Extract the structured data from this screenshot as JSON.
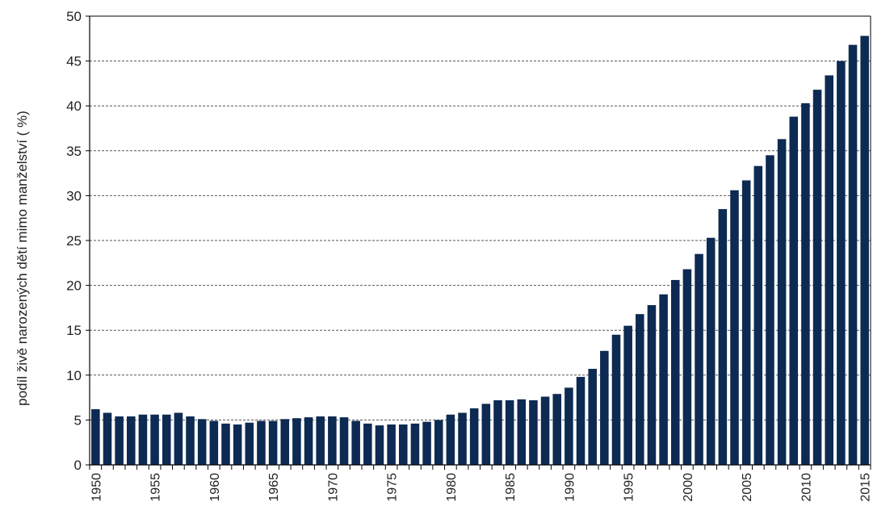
{
  "chart_data": {
    "type": "bar",
    "ylabel": "podíl živě narozených dětí mimo manželství ( %)",
    "xlabel": "",
    "title": "",
    "ylim": [
      0,
      50
    ],
    "yticks": [
      "0",
      "5",
      "10",
      "15",
      "20",
      "25",
      "30",
      "35",
      "40",
      "45",
      "50"
    ],
    "xtick_labels": [
      "1950",
      "1955",
      "1960",
      "1965",
      "1970",
      "1975",
      "1980",
      "1985",
      "1990",
      "1995",
      "2000",
      "2005",
      "2010",
      "2015"
    ],
    "grid": true,
    "bar_color": "#0d2a52",
    "categories": [
      1950,
      1951,
      1952,
      1953,
      1954,
      1955,
      1956,
      1957,
      1958,
      1959,
      1960,
      1961,
      1962,
      1963,
      1964,
      1965,
      1966,
      1967,
      1968,
      1969,
      1970,
      1971,
      1972,
      1973,
      1974,
      1975,
      1976,
      1977,
      1978,
      1979,
      1980,
      1981,
      1982,
      1983,
      1984,
      1985,
      1986,
      1987,
      1988,
      1989,
      1990,
      1991,
      1992,
      1993,
      1994,
      1995,
      1996,
      1997,
      1998,
      1999,
      2000,
      2001,
      2002,
      2003,
      2004,
      2005,
      2006,
      2007,
      2008,
      2009,
      2010,
      2011,
      2012,
      2013,
      2014,
      2015
    ],
    "values": [
      6.2,
      5.8,
      5.4,
      5.4,
      5.6,
      5.6,
      5.6,
      5.8,
      5.4,
      5.1,
      4.9,
      4.6,
      4.5,
      4.7,
      4.9,
      4.9,
      5.1,
      5.2,
      5.3,
      5.4,
      5.4,
      5.3,
      4.9,
      4.6,
      4.4,
      4.5,
      4.5,
      4.6,
      4.8,
      5.0,
      5.6,
      5.8,
      6.3,
      6.8,
      7.2,
      7.2,
      7.3,
      7.2,
      7.6,
      7.9,
      8.6,
      9.8,
      10.7,
      12.7,
      14.5,
      15.5,
      16.8,
      17.8,
      19.0,
      20.6,
      21.8,
      23.5,
      25.3,
      28.5,
      30.6,
      31.7,
      33.3,
      34.5,
      36.3,
      38.8,
      40.3,
      41.8,
      43.4,
      45.0,
      46.8,
      47.8
    ]
  }
}
